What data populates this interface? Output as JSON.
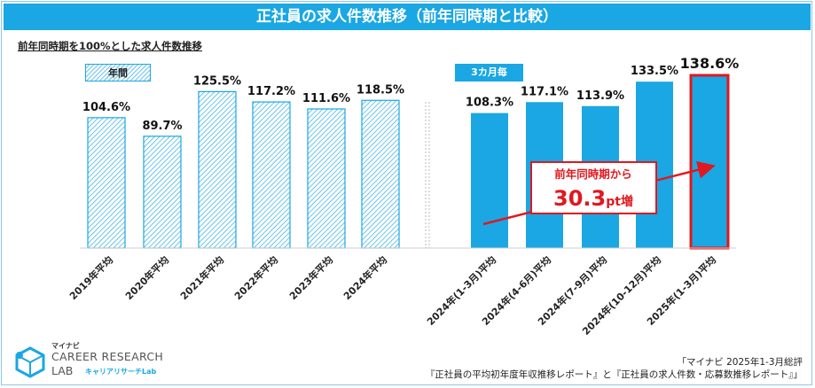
{
  "header": {
    "title": "正社員の求人件数推移（前年同時期と比較）"
  },
  "subtitle": "前年同時期を100%とした求人件数推移",
  "legend": {
    "annual": "年間",
    "quarterly": "3カ月毎"
  },
  "chart_data": {
    "type": "bar",
    "title": "正社員の求人件数推移（前年同時期と比較）",
    "ylim": [
      0,
      145
    ],
    "groups": [
      {
        "label": "年間",
        "style": "hatched",
        "color": "#1aa7e3",
        "categories": [
          "2019年平均",
          "2020年平均",
          "2021年平均",
          "2022年平均",
          "2023年平均",
          "2024年平均"
        ],
        "values": [
          104.6,
          89.7,
          125.5,
          117.2,
          111.6,
          118.5
        ],
        "value_labels": [
          "104.6%",
          "89.7%",
          "125.5%",
          "117.2%",
          "111.6%",
          "118.5%"
        ]
      },
      {
        "label": "3カ月毎",
        "style": "solid",
        "color": "#1aa7e3",
        "categories": [
          "2024年(1-3月)平均",
          "2024年(4-6月)平均",
          "2024年(7-9月)平均",
          "2024年(10-12月)平均",
          "2025年(1-3月)平均"
        ],
        "values": [
          108.3,
          117.1,
          113.9,
          133.5,
          138.6
        ],
        "value_labels": [
          "108.3%",
          "117.1%",
          "113.9%",
          "133.5%",
          "138.6%"
        ],
        "highlight_index": 4,
        "highlight_color": "#e0181f"
      }
    ],
    "annotation": {
      "line1": "前年同時期から",
      "value": "30.3",
      "unit": "pt増",
      "color": "#e0181f"
    }
  },
  "source": {
    "line1": "「マイナビ 2025年1-3月総評",
    "line2": "『正社員の平均初年度年収推移レポート』と『正社員の求人件数・応募数推移レポート』」"
  },
  "logo": {
    "brand": "マイナビ",
    "line1": "CAREER RESEARCH",
    "line2": "LAB",
    "jp": "キャリアリサーチLab"
  }
}
